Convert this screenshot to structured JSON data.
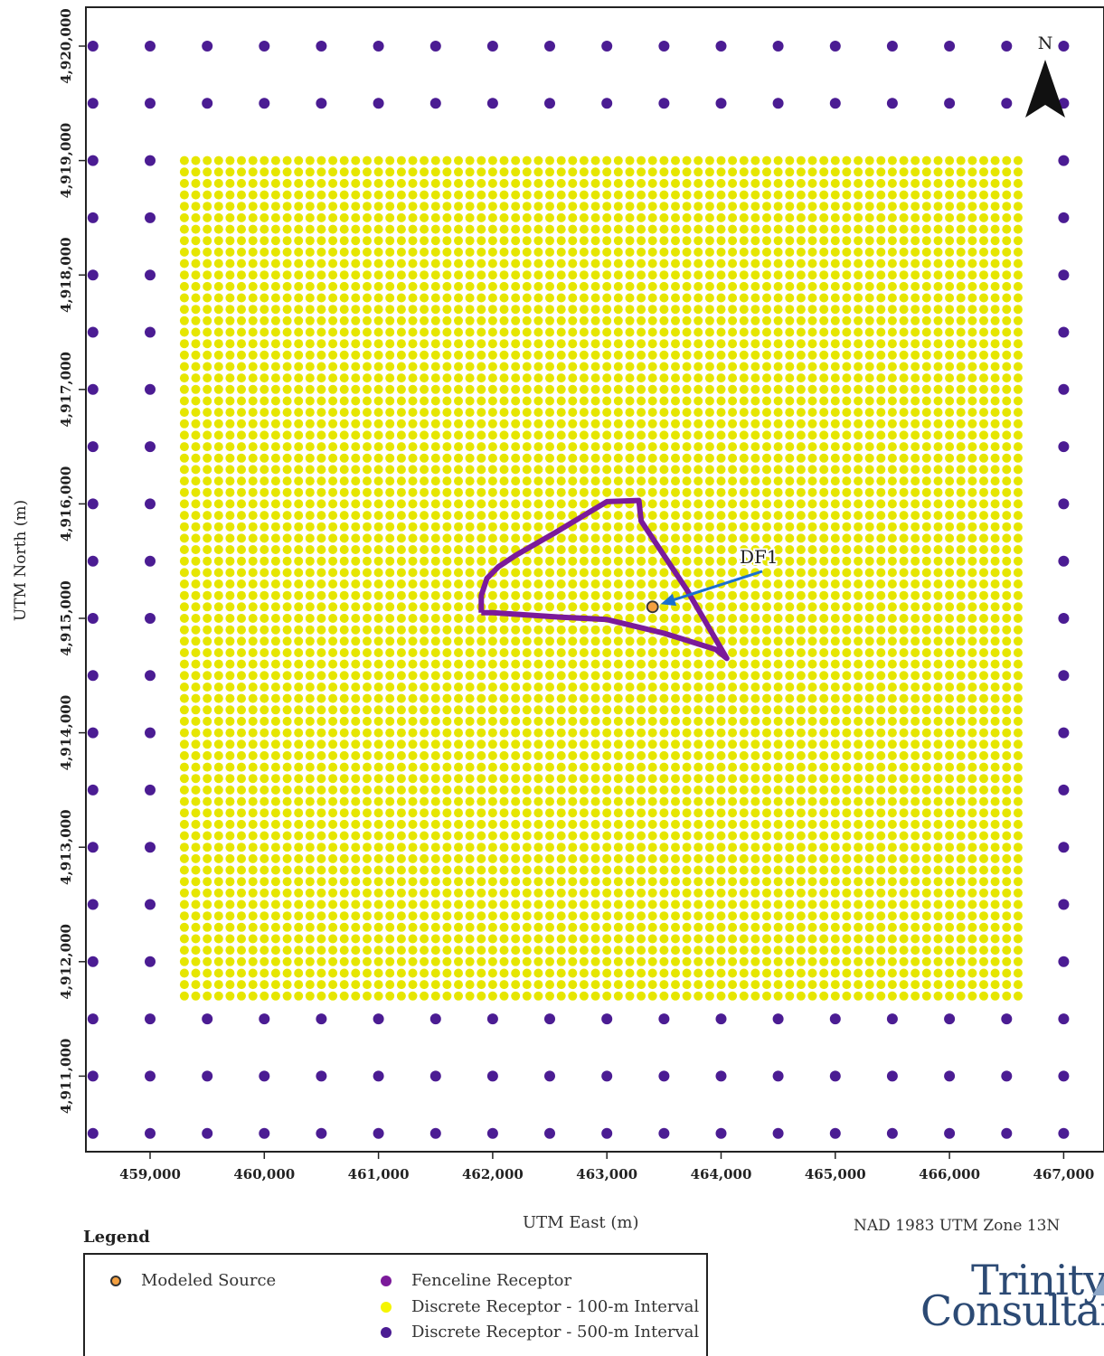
{
  "map": {
    "x_ticks": [
      459000,
      460000,
      461000,
      462000,
      463000,
      464000,
      465000,
      466000,
      467000
    ],
    "x_tick_labels": [
      "459,000",
      "460,000",
      "461,000",
      "462,000",
      "463,000",
      "464,000",
      "465,000",
      "466,000",
      "467,000"
    ],
    "y_ticks": [
      4911000,
      4912000,
      4913000,
      4914000,
      4915000,
      4916000,
      4917000,
      4918000,
      4919000,
      4920000
    ],
    "y_tick_labels": [
      "4,911,000",
      "4,912,000",
      "4,913,000",
      "4,914,000",
      "4,915,000",
      "4,916,000",
      "4,917,000",
      "4,918,000",
      "4,919,000",
      "4,920,000"
    ],
    "xlabel": "UTM East (m)",
    "ylabel": "UTM North (m)",
    "crs": "NAD 1983 UTM Zone 13N",
    "north_label": "N",
    "source_label": "DF1",
    "source": {
      "x": 463400,
      "y": 4915100
    },
    "grid_100m": {
      "x_min": 459300,
      "x_max": 466600,
      "y_min": 4911700,
      "y_max": 4919000,
      "spacing": 100
    },
    "grid_500m": {
      "x_min": 458500,
      "x_max": 467000,
      "y_min": 4910500,
      "y_max": 4920500,
      "spacing": 500
    },
    "fenceline": [
      [
        461900,
        4915050
      ],
      [
        461900,
        4915200
      ],
      [
        461950,
        4915350
      ],
      [
        462050,
        4915450
      ],
      [
        462200,
        4915550
      ],
      [
        462550,
        4915750
      ],
      [
        462800,
        4915900
      ],
      [
        463000,
        4916020
      ],
      [
        463280,
        4916030
      ],
      [
        463300,
        4915850
      ],
      [
        463700,
        4915250
      ],
      [
        464050,
        4914650
      ],
      [
        463950,
        4914730
      ],
      [
        463500,
        4914870
      ],
      [
        463000,
        4914990
      ],
      [
        462600,
        4915010
      ],
      [
        462000,
        4915050
      ],
      [
        461900,
        4915050
      ]
    ],
    "colors": {
      "fenceline": "#7b1a9a",
      "receptor_100m": "#e6e600",
      "receptor_500m": "#4b1c93",
      "source_fill": "#f4a040",
      "arrow": "#1a6fd0"
    }
  },
  "legend": {
    "title": "Legend",
    "items": [
      {
        "label": "Modeled Source",
        "color": "#f4a040",
        "outline": "#333333"
      },
      {
        "label": "Fenceline Receptor",
        "color": "#7b1a9a"
      },
      {
        "label": "Discrete Receptor - 100-m Interval",
        "color": "#f5f500"
      },
      {
        "label": "Discrete Receptor - 500-m Interval",
        "color": "#4b1c93"
      }
    ]
  },
  "logo": {
    "line1": "Trinity",
    "line2": "Consultants"
  }
}
